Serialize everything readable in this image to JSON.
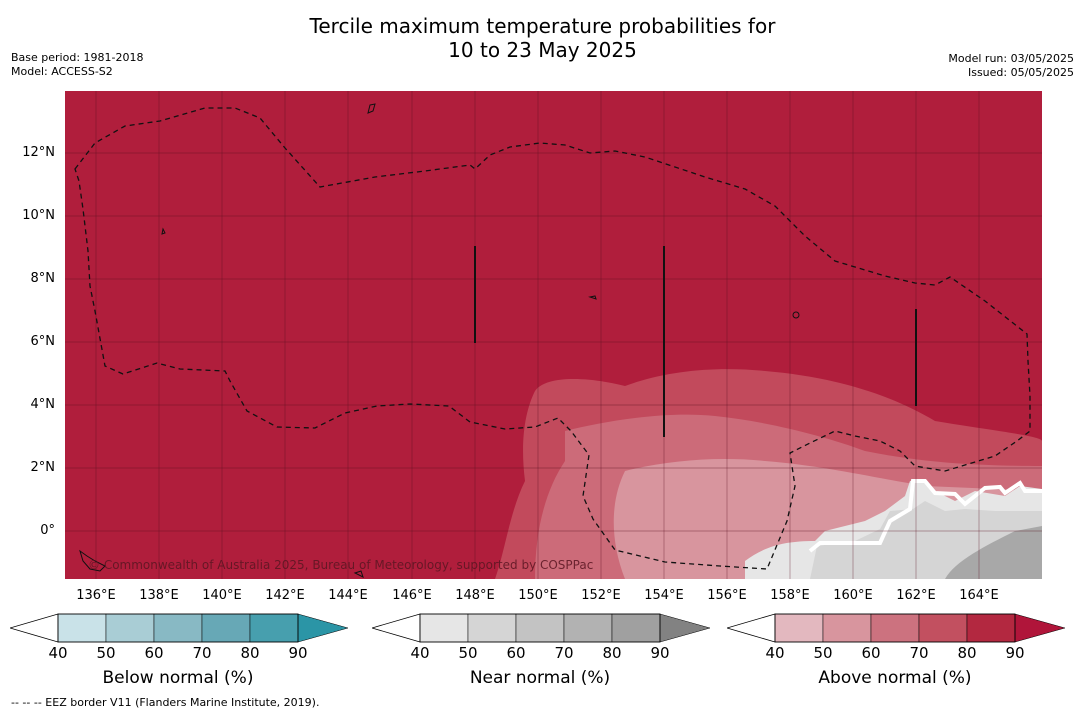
{
  "header": {
    "title_line1": "Tercile maximum temperature probabilities for",
    "title_line2": "10 to 23 May 2025",
    "base_period": "Base period: 1981-2018",
    "model": "Model: ACCESS-S2",
    "model_run": "Model run: 03/05/2025",
    "issued": "Issued: 05/05/2025"
  },
  "map": {
    "lat_labels": [
      "12°N",
      "10°N",
      "8°N",
      "6°N",
      "4°N",
      "2°N",
      "0°"
    ],
    "lon_labels": [
      "136°E",
      "138°E",
      "140°E",
      "142°E",
      "144°E",
      "146°E",
      "148°E",
      "150°E",
      "152°E",
      "154°E",
      "156°E",
      "158°E",
      "160°E",
      "162°E",
      "164°E"
    ],
    "credit": "© Commonwealth of Australia 2025, Bureau of Meteorology, supported by COSPPac"
  },
  "colorbars": [
    {
      "label": "Below normal (%)",
      "ticks": [
        "40",
        "50",
        "60",
        "70",
        "80",
        "90"
      ],
      "colors": [
        "#ffffff",
        "#c9e2e8",
        "#a9cdd5",
        "#88b9c4",
        "#67a8b6",
        "#479fae",
        "#2b95a6"
      ]
    },
    {
      "label": "Near normal (%)",
      "ticks": [
        "40",
        "50",
        "60",
        "70",
        "80",
        "90"
      ],
      "colors": [
        "#ffffff",
        "#e6e6e6",
        "#d5d5d5",
        "#c3c3c3",
        "#b2b2b2",
        "#a0a0a0",
        "#828282"
      ]
    },
    {
      "label": "Above normal (%)",
      "ticks": [
        "40",
        "50",
        "60",
        "70",
        "80",
        "90"
      ],
      "colors": [
        "#ffffff",
        "#e3b8bf",
        "#d8959e",
        "#cc727f",
        "#c25060",
        "#b32840",
        "#b0153a"
      ]
    }
  ],
  "footnote": "-- -- -- EEZ border V11 (Flanders Marine Institute, 2019)."
}
